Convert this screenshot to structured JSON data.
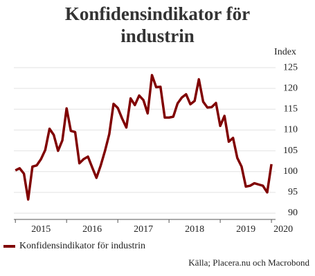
{
  "chart_data": {
    "type": "line",
    "title": "Konfidensindikator för industrin",
    "y_label": "Index",
    "source": "Källa; Placera.nu och Macrobond",
    "x": [
      2015,
      2015.083,
      2015.167,
      2015.25,
      2015.333,
      2015.417,
      2015.5,
      2015.583,
      2015.667,
      2015.75,
      2015.833,
      2015.917,
      2016,
      2016.083,
      2016.167,
      2016.25,
      2016.333,
      2016.417,
      2016.5,
      2016.583,
      2016.667,
      2016.75,
      2016.833,
      2016.917,
      2017,
      2017.083,
      2017.167,
      2017.25,
      2017.333,
      2017.417,
      2017.5,
      2017.583,
      2017.667,
      2017.75,
      2017.833,
      2017.917,
      2018,
      2018.083,
      2018.167,
      2018.25,
      2018.333,
      2018.417,
      2018.5,
      2018.583,
      2018.667,
      2018.75,
      2018.833,
      2018.917,
      2019,
      2019.083,
      2019.167,
      2019.25,
      2019.333,
      2019.417,
      2019.5,
      2019.583,
      2019.667,
      2019.75,
      2019.833,
      2019.917,
      2020
    ],
    "series": [
      {
        "name": "Konfidensindikator för industrin",
        "color": "#800000",
        "values": [
          100.3,
          100.8,
          99.5,
          93.3,
          101.2,
          101.5,
          103,
          105.2,
          110.3,
          108.8,
          105,
          107.5,
          115.2,
          109.8,
          109.5,
          102,
          103,
          103.6,
          101,
          98.5,
          101.5,
          105,
          109,
          116.3,
          115.3,
          112.8,
          110.6,
          117.6,
          116,
          118.3,
          117.2,
          114,
          123.2,
          120.3,
          120.4,
          113,
          113,
          113.2,
          116.4,
          117.8,
          118.6,
          116.2,
          117,
          122.2,
          116.8,
          115.4,
          115.5,
          116.5,
          111,
          113.4,
          107.2,
          108.1,
          103.3,
          101.2,
          96.4,
          96.6,
          97.2,
          96.9,
          96.6,
          95,
          101.8
        ]
      }
    ],
    "xlim": [
      2014.97,
      2020.08
    ],
    "xticks": [
      2015,
      2016,
      2017,
      2018,
      2019,
      2020
    ],
    "ylim": [
      88.5,
      126.5
    ],
    "yticks": [
      90,
      95,
      100,
      105,
      110,
      115,
      120,
      125
    ],
    "grid": true,
    "legend": "bottom-left"
  }
}
